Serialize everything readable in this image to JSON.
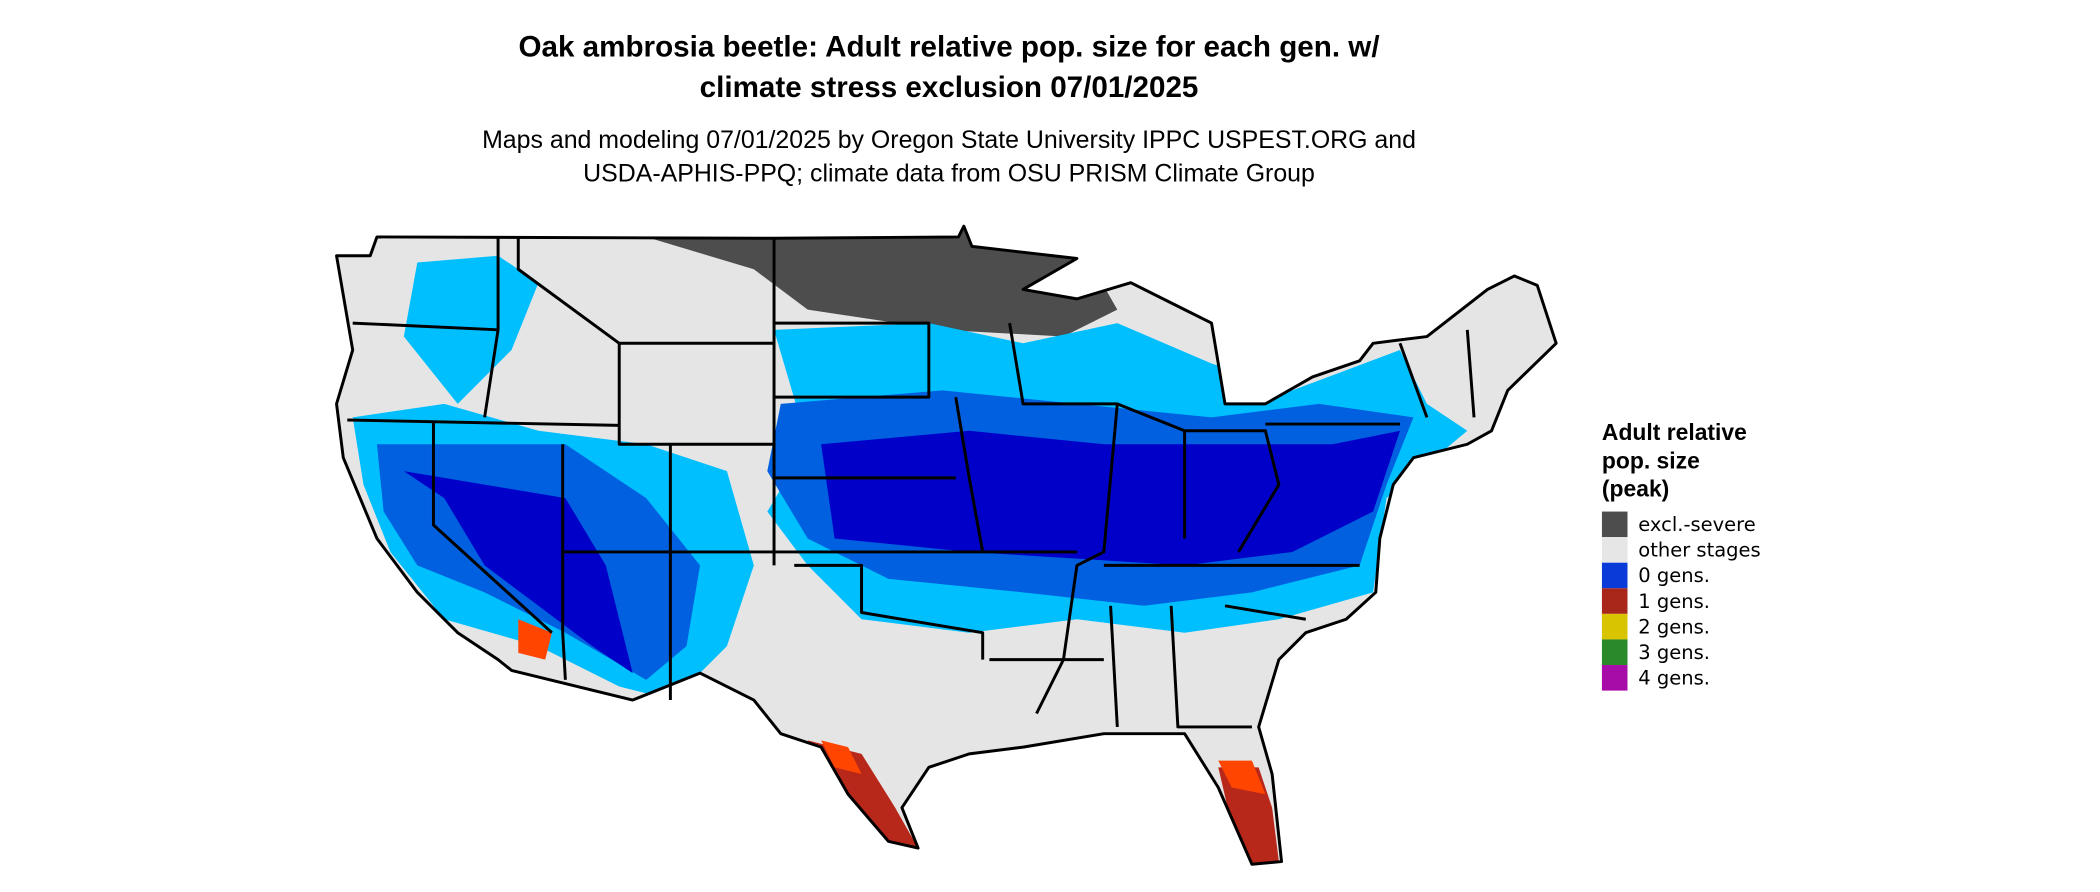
{
  "title": [
    "Oak ambrosia beetle: Adult relative pop. size for each gen. w/",
    "climate stress exclusion 07/01/2025"
  ],
  "subtitle": [
    "Maps and modeling 07/01/2025 by Oregon State University IPPC USPEST.ORG and",
    "USDA-APHIS-PPQ; climate data from OSU PRISM Climate Group"
  ],
  "legend": {
    "title": [
      "Adult relative",
      "pop. size",
      "(peak)"
    ],
    "items": [
      {
        "label": "excl.-severe",
        "color": "#4d4d4d"
      },
      {
        "label": "other stages",
        "color": "#e6e6e6"
      },
      {
        "label": "0 gens.",
        "color": "#0a3ad8"
      },
      {
        "label": "1 gens.",
        "color": "#a8261a"
      },
      {
        "label": "2 gens.",
        "color": "#d8c400"
      },
      {
        "label": "3 gens.",
        "color": "#2a8a2a"
      },
      {
        "label": "4 gens.",
        "color": "#a80ca8"
      }
    ]
  }
}
